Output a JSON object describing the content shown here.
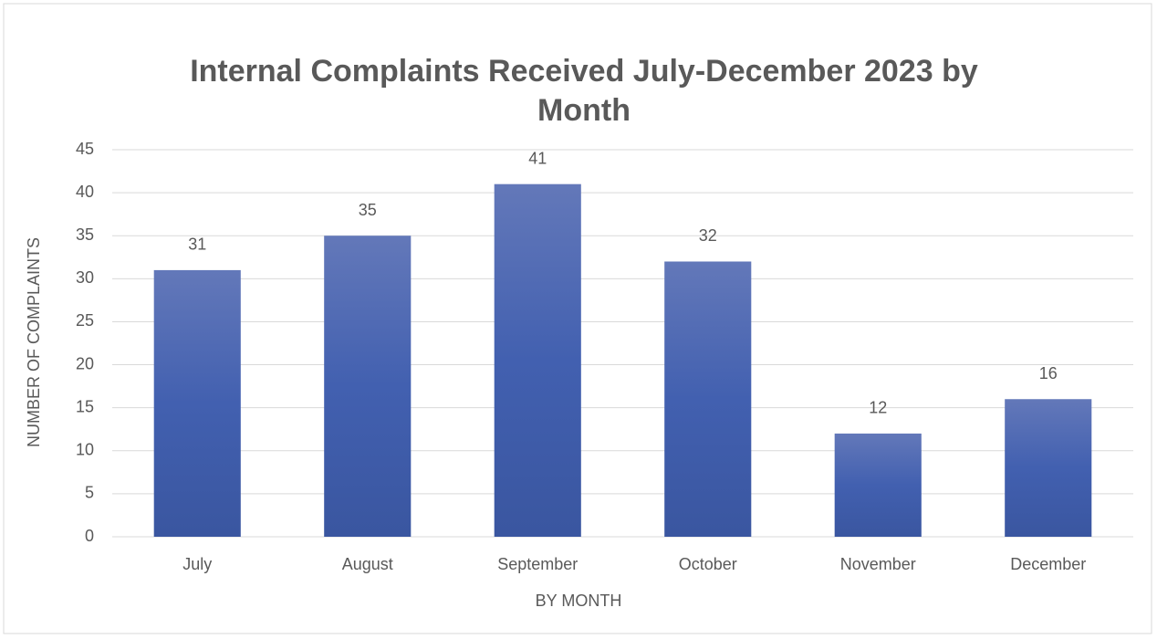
{
  "chart_data": {
    "type": "bar",
    "title": "Internal Complaints Received July-December 2023 by Month",
    "x_label": "BY MONTH",
    "y_label": "NUMBER OF COMPLAINTS",
    "categories": [
      "July",
      "August",
      "September",
      "October",
      "November",
      "December"
    ],
    "values": [
      31,
      35,
      41,
      32,
      12,
      16
    ],
    "color": "#4a66b4",
    "ylim": [
      0,
      45
    ],
    "yticks": [
      0,
      5,
      10,
      15,
      20,
      25,
      30,
      35,
      40,
      45
    ],
    "grid": true
  }
}
